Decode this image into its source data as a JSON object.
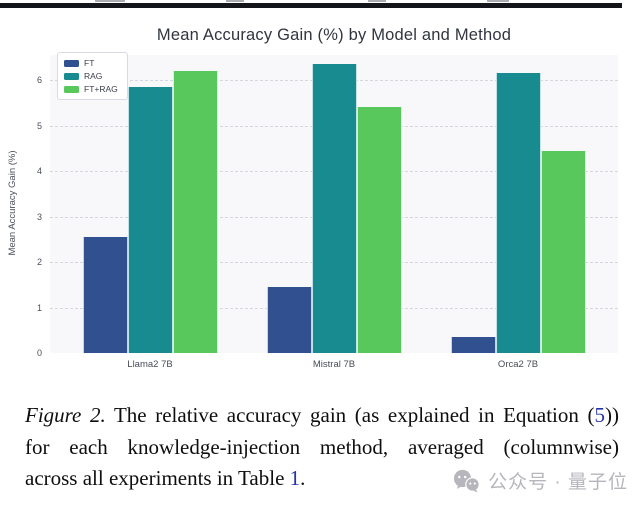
{
  "chart_data": {
    "type": "bar",
    "title": "Mean Accuracy Gain (%) by Model and Method",
    "categories": [
      "Llama2 7B",
      "Mistral 7B",
      "Orca2 7B"
    ],
    "series": [
      {
        "name": "FT",
        "color": "#31508f",
        "values": [
          2.55,
          1.45,
          0.35
        ]
      },
      {
        "name": "RAG",
        "color": "#178b8f",
        "values": [
          5.85,
          6.35,
          6.15
        ]
      },
      {
        "name": "FT+RAG",
        "color": "#58c75c",
        "values": [
          6.2,
          5.4,
          4.45
        ]
      }
    ],
    "xlabel": "",
    "ylabel": "Mean Accuracy Gain (%)",
    "ylim": [
      0,
      6.55
    ],
    "yticks": [
      0,
      1,
      2,
      3,
      4,
      5,
      6
    ],
    "grid": "horizontal dashed",
    "legend_position": "upper left",
    "colors": {
      "plot_background": "#f8f8fb",
      "grid_color": "#d6d6de",
      "tick_color": "#4a4f5a",
      "title_color": "#30353f"
    }
  },
  "caption": {
    "link_color": "#2433a8",
    "lines": [
      {
        "parts": [
          {
            "text": "Figure 2.",
            "style": "italic"
          },
          {
            "text": " The relative accuracy gain (as explained in Equation (",
            "style": ""
          },
          {
            "text": "5",
            "style": "link"
          },
          {
            "text": "))",
            "style": ""
          }
        ]
      },
      {
        "parts": [
          {
            "text": "for each knowledge-injection method, averaged (columnwise)",
            "style": ""
          }
        ]
      },
      {
        "parts": [
          {
            "text": "across all experiments in Table ",
            "style": ""
          },
          {
            "text": "1",
            "style": "link"
          },
          {
            "text": ".",
            "style": ""
          }
        ]
      }
    ]
  },
  "watermark": {
    "text": "公众号 · 量子位",
    "icon": "wechat-icon",
    "color": "#b6b6bc"
  }
}
